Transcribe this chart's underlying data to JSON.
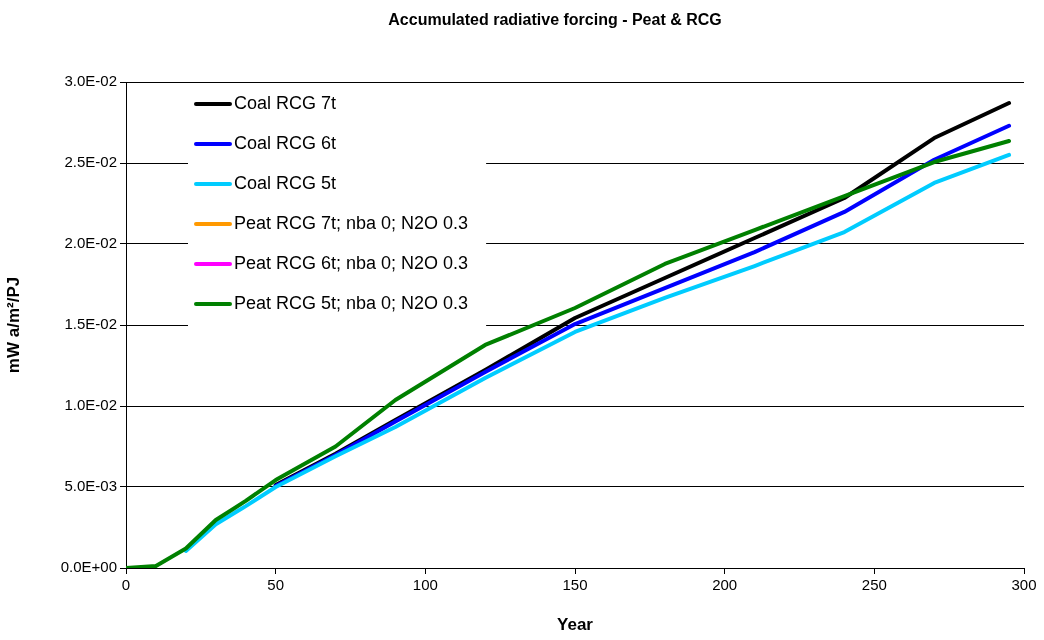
{
  "chart_data": {
    "type": "line",
    "title": "Accumulated radiative forcing - Peat & RCG",
    "xlabel": "Year",
    "ylabel": "mW a/m²/PJ",
    "x": [
      0,
      10,
      20,
      30,
      40,
      50,
      70,
      90,
      120,
      150,
      180,
      210,
      240,
      270,
      295
    ],
    "xlim": [
      0,
      300
    ],
    "xticks": [
      0,
      50,
      100,
      150,
      200,
      250,
      300
    ],
    "ylim": [
      0,
      0.03
    ],
    "yticks": [
      {
        "value": 0,
        "label": "0.0E+00"
      },
      {
        "value": 0.005,
        "label": "5.0E-03"
      },
      {
        "value": 0.01,
        "label": "1.0E-02"
      },
      {
        "value": 0.015,
        "label": "1.5E-02"
      },
      {
        "value": 0.02,
        "label": "2.0E-02"
      },
      {
        "value": 0.025,
        "label": "2.5E-02"
      },
      {
        "value": 0.03,
        "label": "3.0E-02"
      }
    ],
    "grid": "y",
    "legend": "top left",
    "marker": "none",
    "line_style": "solid",
    "series": [
      {
        "name": "Coal RCG 7t",
        "color": "#000000",
        "values": [
          null,
          null,
          null,
          null,
          null,
          0.00512,
          0.00705,
          0.00914,
          0.01222,
          0.01543,
          0.0179,
          0.02037,
          0.02284,
          0.02654,
          0.0287
        ]
      },
      {
        "name": "Coal RCG 6t",
        "color": "#0000ff",
        "values": [
          null,
          null,
          null,
          null,
          null,
          0.00506,
          0.00698,
          0.00905,
          0.0121,
          0.01506,
          0.01728,
          0.0195,
          0.02198,
          0.0252,
          0.0273
        ]
      },
      {
        "name": "Coal RCG 5t",
        "color": "#00ccff",
        "values": [
          null,
          null,
          0.00105,
          0.0027,
          0.00382,
          0.005,
          0.0069,
          0.0087,
          0.01173,
          0.01457,
          0.01667,
          0.01864,
          0.02074,
          0.02377,
          0.0255
        ]
      },
      {
        "name": "Peat RCG 7t; nba 0; N2O 0.3",
        "color": "#ff9900",
        "values": [
          null,
          null,
          null,
          null,
          null,
          null,
          null,
          null,
          null,
          null,
          null,
          null,
          null,
          null,
          null
        ]
      },
      {
        "name": "Peat RCG 6t; nba 0; N2O 0.3",
        "color": "#ff00ff",
        "values": [
          null,
          null,
          null,
          null,
          null,
          null,
          null,
          null,
          null,
          null,
          null,
          null,
          null,
          null,
          null
        ]
      },
      {
        "name": "Peat RCG 5t; nba 0; N2O 0.3",
        "color": "#008000",
        "values": [
          0,
          0.00012,
          0.0012,
          0.00296,
          0.00414,
          0.00543,
          0.0075,
          0.01037,
          0.01377,
          0.01605,
          0.01877,
          0.02086,
          0.02296,
          0.02506,
          0.02636
        ]
      }
    ]
  }
}
